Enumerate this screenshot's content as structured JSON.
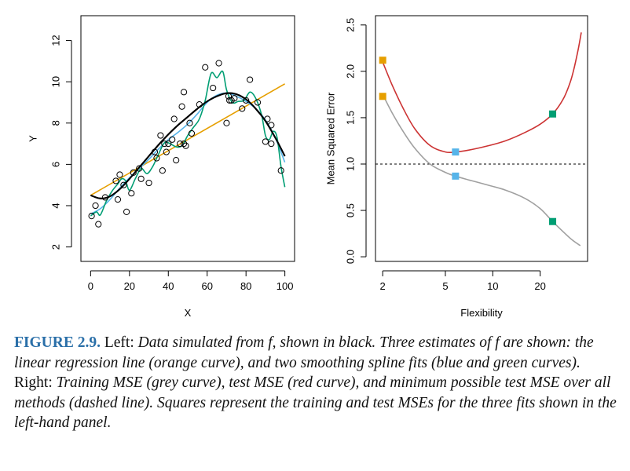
{
  "chart_data": [
    {
      "type": "scatter",
      "xlabel": "X",
      "ylabel": "Y",
      "xlim": [
        -5,
        105
      ],
      "ylim": [
        1.3,
        13.2
      ],
      "xticks": [
        0,
        20,
        40,
        60,
        80,
        100
      ],
      "yticks": [
        2,
        4,
        6,
        8,
        10,
        12
      ],
      "grid": false,
      "points": [
        {
          "x": 0.5,
          "y": 3.5
        },
        {
          "x": 2.5,
          "y": 4.0
        },
        {
          "x": 4,
          "y": 3.1
        },
        {
          "x": 7.5,
          "y": 4.4
        },
        {
          "x": 13,
          "y": 5.2
        },
        {
          "x": 14,
          "y": 4.3
        },
        {
          "x": 15,
          "y": 5.5
        },
        {
          "x": 17,
          "y": 5.0
        },
        {
          "x": 18.5,
          "y": 3.7
        },
        {
          "x": 21,
          "y": 4.6
        },
        {
          "x": 22,
          "y": 5.6
        },
        {
          "x": 25,
          "y": 5.8
        },
        {
          "x": 26,
          "y": 5.3
        },
        {
          "x": 30,
          "y": 5.1
        },
        {
          "x": 33,
          "y": 6.6
        },
        {
          "x": 34,
          "y": 6.3
        },
        {
          "x": 36,
          "y": 7.4
        },
        {
          "x": 37,
          "y": 5.7
        },
        {
          "x": 38,
          "y": 7.0
        },
        {
          "x": 39,
          "y": 6.6
        },
        {
          "x": 40,
          "y": 7.0
        },
        {
          "x": 42,
          "y": 7.2
        },
        {
          "x": 43,
          "y": 8.2
        },
        {
          "x": 44,
          "y": 6.2
        },
        {
          "x": 46,
          "y": 7.0
        },
        {
          "x": 47,
          "y": 8.8
        },
        {
          "x": 48,
          "y": 7.0
        },
        {
          "x": 48,
          "y": 9.5
        },
        {
          "x": 49,
          "y": 6.9
        },
        {
          "x": 51,
          "y": 8.0
        },
        {
          "x": 52,
          "y": 7.5
        },
        {
          "x": 56,
          "y": 8.9
        },
        {
          "x": 59,
          "y": 10.7
        },
        {
          "x": 63,
          "y": 9.7
        },
        {
          "x": 66,
          "y": 10.9
        },
        {
          "x": 70,
          "y": 8.0
        },
        {
          "x": 71,
          "y": 9.3
        },
        {
          "x": 71.5,
          "y": 9.1
        },
        {
          "x": 72.5,
          "y": 9.1
        },
        {
          "x": 74,
          "y": 9.2
        },
        {
          "x": 78,
          "y": 8.7
        },
        {
          "x": 80,
          "y": 9.1
        },
        {
          "x": 82,
          "y": 10.1
        },
        {
          "x": 86,
          "y": 9.0
        },
        {
          "x": 90,
          "y": 7.1
        },
        {
          "x": 91,
          "y": 8.2
        },
        {
          "x": 93,
          "y": 7.0
        },
        {
          "x": 93,
          "y": 7.9
        },
        {
          "x": 98,
          "y": 5.7
        }
      ],
      "series": [
        {
          "color": "#000000",
          "curve": "true_f",
          "x": [
            0,
            5,
            10,
            15,
            20,
            25,
            30,
            35,
            40,
            45,
            50,
            55,
            60,
            65,
            70,
            75,
            80,
            85,
            90,
            95,
            100
          ],
          "y": [
            4.5,
            4.35,
            4.45,
            4.8,
            5.3,
            5.85,
            6.4,
            6.95,
            7.45,
            7.9,
            8.3,
            8.7,
            9.05,
            9.3,
            9.45,
            9.4,
            9.15,
            8.7,
            8.1,
            7.3,
            6.4
          ]
        },
        {
          "color": "#e69f00",
          "curve": "linear",
          "x": [
            0,
            100
          ],
          "y": [
            4.5,
            9.9
          ]
        },
        {
          "color": "#56b4e9",
          "curve": "smooth_spline",
          "x": [
            0,
            5,
            10,
            15,
            20,
            25,
            30,
            35,
            40,
            45,
            50,
            55,
            60,
            65,
            70,
            75,
            80,
            85,
            90,
            95,
            100
          ],
          "y": [
            3.6,
            3.85,
            4.3,
            4.85,
            5.35,
            5.8,
            6.25,
            6.75,
            7.2,
            7.55,
            7.95,
            8.45,
            9.0,
            9.35,
            9.45,
            9.3,
            9.05,
            8.7,
            8.15,
            7.3,
            6.1
          ]
        },
        {
          "color": "#009e73",
          "curve": "wiggly_spline",
          "x": [
            0,
            3,
            5,
            8,
            11,
            14,
            16,
            18,
            20,
            23,
            26,
            29,
            32,
            35,
            38,
            41,
            44,
            47,
            50,
            53,
            56,
            59,
            62,
            65,
            68,
            70,
            73,
            76,
            79,
            82,
            85,
            88,
            90,
            92,
            94,
            96,
            98,
            100
          ],
          "y": [
            3.5,
            3.7,
            3.55,
            4.2,
            4.7,
            5.05,
            5.3,
            5.2,
            4.75,
            5.3,
            5.8,
            5.55,
            5.9,
            6.5,
            7.05,
            7.0,
            6.85,
            6.9,
            7.4,
            7.8,
            8.2,
            9.1,
            10.4,
            10.2,
            10.5,
            9.6,
            9.0,
            9.05,
            9.1,
            9.5,
            9.2,
            8.4,
            7.4,
            7.2,
            7.6,
            7.3,
            5.9,
            4.9
          ]
        }
      ]
    },
    {
      "type": "line",
      "xlabel": "Flexibility",
      "ylabel": "Mean Squared Error",
      "xscale": "log",
      "xlim": [
        1.8,
        40
      ],
      "ylim": [
        -0.05,
        2.6
      ],
      "xticks": [
        2,
        5,
        10,
        20
      ],
      "yticks": [
        0.0,
        0.5,
        1.0,
        1.5,
        2.0,
        2.5
      ],
      "grid": false,
      "reference_line": {
        "y": 1.0,
        "style": "dashed",
        "color": "#000000"
      },
      "series": [
        {
          "color": "#cc3333",
          "curve": "test_mse",
          "x": [
            2,
            2.3,
            2.7,
            3.2,
            4,
            5,
            5.8,
            7,
            9,
            12,
            16,
            20,
            24,
            28,
            31,
            33,
            35,
            36.5
          ],
          "y": [
            2.1,
            1.85,
            1.6,
            1.38,
            1.2,
            1.13,
            1.13,
            1.15,
            1.19,
            1.25,
            1.34,
            1.43,
            1.54,
            1.7,
            1.88,
            2.05,
            2.25,
            2.42
          ]
        },
        {
          "color": "#a0a0a0",
          "curve": "train_mse",
          "x": [
            2,
            2.3,
            2.7,
            3.2,
            4,
            5,
            5.8,
            7,
            9,
            12,
            16,
            20,
            24,
            28,
            32,
            36
          ],
          "y": [
            1.75,
            1.55,
            1.35,
            1.17,
            1.0,
            0.91,
            0.87,
            0.83,
            0.78,
            0.72,
            0.63,
            0.52,
            0.38,
            0.27,
            0.18,
            0.12
          ]
        }
      ],
      "squares": [
        {
          "x": 2,
          "y": 2.12,
          "color": "#e69f00"
        },
        {
          "x": 2,
          "y": 1.73,
          "color": "#e69f00"
        },
        {
          "x": 5.8,
          "y": 1.13,
          "color": "#56b4e9"
        },
        {
          "x": 5.8,
          "y": 0.87,
          "color": "#56b4e9"
        },
        {
          "x": 24,
          "y": 1.54,
          "color": "#009e73"
        },
        {
          "x": 24,
          "y": 0.38,
          "color": "#009e73"
        }
      ]
    }
  ],
  "caption": {
    "label": "FIGURE 2.9.",
    "part1": " Left: ",
    "part2": "Data simulated from f, shown in black. Three estimates of f are shown: the linear regression line (orange curve), and two smoothing spline fits (blue and green curves).",
    "part3": " Right: ",
    "part4": "Training MSE (grey curve), test MSE (red curve), and minimum possible test MSE over all methods (dashed line). Squares represent the training and test MSEs for the three fits shown in the left-hand panel."
  }
}
